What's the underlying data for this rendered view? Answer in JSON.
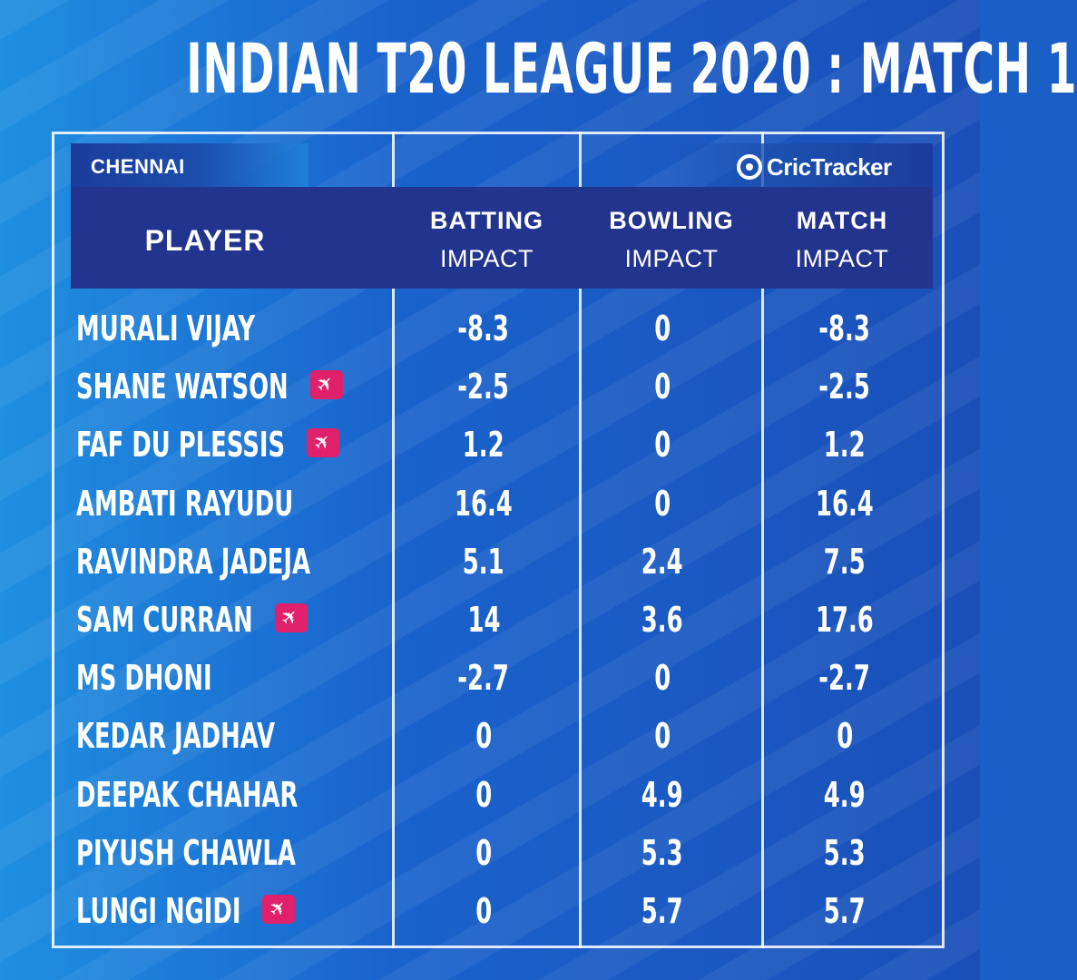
{
  "title": "INDIAN T20 LEAGUE 2020  :  MATCH 1",
  "team": "CHENNAI",
  "brand": "CricTracker",
  "columns": {
    "player": "PLAYER",
    "batting": [
      "BATTING",
      "IMPACT"
    ],
    "bowling": [
      "BOWLING",
      "IMPACT"
    ],
    "match": [
      "MATCH",
      "IMPACT"
    ]
  },
  "overseas_icon": "airplane-icon",
  "colors": {
    "header_band": "#23348e",
    "overseas_badge": "#e0206a",
    "background": "#1a5fc6"
  },
  "players": [
    {
      "name": "MURALI VIJAY",
      "overseas": false,
      "batting": "-8.3",
      "bowling": "0",
      "match": "-8.3"
    },
    {
      "name": "SHANE WATSON",
      "overseas": true,
      "batting": "-2.5",
      "bowling": "0",
      "match": "-2.5"
    },
    {
      "name": "FAF DU PLESSIS",
      "overseas": true,
      "batting": "1.2",
      "bowling": "0",
      "match": "1.2"
    },
    {
      "name": "AMBATI RAYUDU",
      "overseas": false,
      "batting": "16.4",
      "bowling": "0",
      "match": "16.4"
    },
    {
      "name": "RAVINDRA JADEJA",
      "overseas": false,
      "batting": "5.1",
      "bowling": "2.4",
      "match": "7.5"
    },
    {
      "name": "SAM CURRAN",
      "overseas": true,
      "batting": "14",
      "bowling": "3.6",
      "match": "17.6"
    },
    {
      "name": "MS DHONI",
      "overseas": false,
      "batting": "-2.7",
      "bowling": "0",
      "match": "-2.7"
    },
    {
      "name": "KEDAR JADHAV",
      "overseas": false,
      "batting": "0",
      "bowling": "0",
      "match": "0"
    },
    {
      "name": "DEEPAK CHAHAR",
      "overseas": false,
      "batting": "0",
      "bowling": "4.9",
      "match": "4.9"
    },
    {
      "name": "PIYUSH CHAWLA",
      "overseas": false,
      "batting": "0",
      "bowling": "5.3",
      "match": "5.3"
    },
    {
      "name": "LUNGI NGIDI",
      "overseas": true,
      "batting": "0",
      "bowling": "5.7",
      "match": "5.7"
    }
  ]
}
